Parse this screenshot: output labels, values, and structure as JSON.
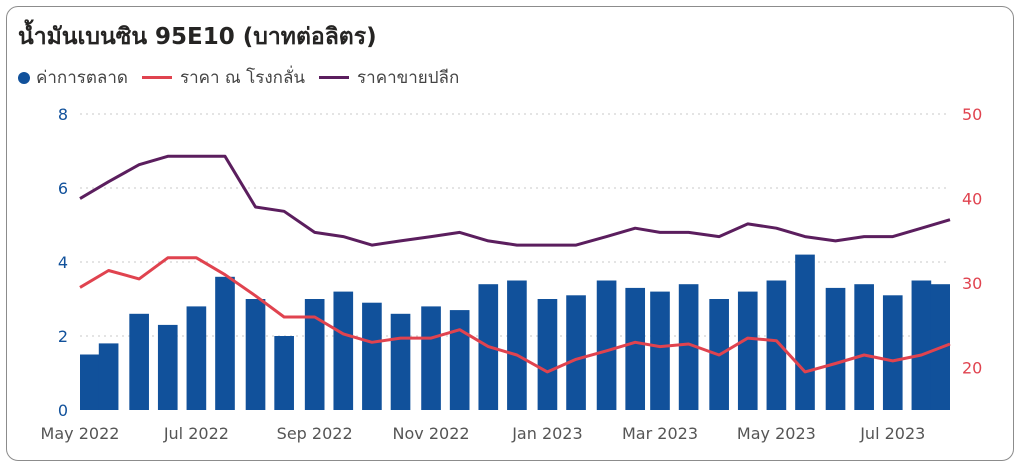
{
  "title": "น้ำมันเบนซิน 95E10 (บาทต่อลิตร)",
  "legend": [
    {
      "label": "ค่าการตลาด",
      "color": "#11519b",
      "kind": "dot"
    },
    {
      "label": "ราคา ณ โรงกลั่น",
      "color": "#e0434f",
      "kind": "line"
    },
    {
      "label": "ราคาขายปลีก",
      "color": "#5b1e5e",
      "kind": "line"
    }
  ],
  "chart_data": {
    "type": "bar+line",
    "x_ticks": [
      "May 2022",
      "Jul 2022",
      "Sep 2022",
      "Nov 2022",
      "Jan 2023",
      "Mar 2023",
      "May 2023",
      "Jul 2023"
    ],
    "x_range": [
      "2022-05-01",
      "2023-07-31"
    ],
    "y_left": {
      "ticks": [
        "0",
        "2",
        "4",
        "6",
        "8"
      ],
      "range": [
        0,
        8
      ],
      "color": "#11519b"
    },
    "y_right": {
      "ticks": [
        "20",
        "30",
        "40",
        "50"
      ],
      "range": [
        15,
        50
      ],
      "color": "#e0434f"
    },
    "grid": true,
    "series": [
      {
        "name": "ค่าการตลาด",
        "type": "bar",
        "axis": "left",
        "color": "#11519b",
        "x": [
          "2022-05-01",
          "2022-05-16",
          "2022-06-01",
          "2022-06-16",
          "2022-07-01",
          "2022-07-16",
          "2022-08-01",
          "2022-08-16",
          "2022-09-01",
          "2022-09-16",
          "2022-10-01",
          "2022-10-16",
          "2022-11-01",
          "2022-11-16",
          "2022-12-01",
          "2022-12-16",
          "2023-01-01",
          "2023-01-16",
          "2023-02-01",
          "2023-02-16",
          "2023-03-01",
          "2023-03-16",
          "2023-04-01",
          "2023-04-16",
          "2023-05-01",
          "2023-05-16",
          "2023-06-01",
          "2023-06-16",
          "2023-07-01",
          "2023-07-16",
          "2023-07-31"
        ],
        "values": [
          1.5,
          1.8,
          2.6,
          2.3,
          2.8,
          3.6,
          3.0,
          2.0,
          3.0,
          3.2,
          2.9,
          2.6,
          2.8,
          2.7,
          3.4,
          3.5,
          3.0,
          3.1,
          3.5,
          3.3,
          3.2,
          3.4,
          3.0,
          3.2,
          3.5,
          4.2,
          3.3,
          3.4,
          3.1,
          3.5,
          3.4
        ]
      },
      {
        "name": "ราคา ณ โรงกลั่น",
        "type": "line",
        "axis": "right",
        "color": "#e0434f",
        "x": [
          "2022-05-01",
          "2022-05-16",
          "2022-06-01",
          "2022-06-16",
          "2022-07-01",
          "2022-07-16",
          "2022-08-01",
          "2022-08-16",
          "2022-09-01",
          "2022-09-16",
          "2022-10-01",
          "2022-10-16",
          "2022-11-01",
          "2022-11-16",
          "2022-12-01",
          "2022-12-16",
          "2023-01-01",
          "2023-01-16",
          "2023-02-01",
          "2023-02-16",
          "2023-03-01",
          "2023-03-16",
          "2023-04-01",
          "2023-04-16",
          "2023-05-01",
          "2023-05-16",
          "2023-06-01",
          "2023-06-16",
          "2023-07-01",
          "2023-07-16",
          "2023-07-31"
        ],
        "values": [
          29.5,
          31.5,
          30.5,
          33,
          33,
          31,
          28.5,
          26,
          26,
          24,
          23,
          23.5,
          23.5,
          24.5,
          22.5,
          21.5,
          19.5,
          21,
          22,
          23,
          22.5,
          22.8,
          21.5,
          23.5,
          23.2,
          19.5,
          20.5,
          21.5,
          20.8,
          21.5,
          22.8
        ]
      },
      {
        "name": "ราคาขายปลีก",
        "type": "line",
        "axis": "right",
        "color": "#5b1e5e",
        "x": [
          "2022-05-01",
          "2022-05-16",
          "2022-06-01",
          "2022-06-16",
          "2022-07-01",
          "2022-07-16",
          "2022-08-01",
          "2022-08-16",
          "2022-09-01",
          "2022-09-16",
          "2022-10-01",
          "2022-10-16",
          "2022-11-01",
          "2022-11-16",
          "2022-12-01",
          "2022-12-16",
          "2023-01-01",
          "2023-01-16",
          "2023-02-01",
          "2023-02-16",
          "2023-03-01",
          "2023-03-16",
          "2023-04-01",
          "2023-04-16",
          "2023-05-01",
          "2023-05-16",
          "2023-06-01",
          "2023-06-16",
          "2023-07-01",
          "2023-07-16",
          "2023-07-31"
        ],
        "values": [
          40,
          42,
          44,
          45,
          45,
          45,
          39,
          38.5,
          36,
          35.5,
          34.5,
          35,
          35.5,
          36,
          35,
          34.5,
          34.5,
          34.5,
          35.5,
          36.5,
          36,
          36,
          35.5,
          37,
          36.5,
          35.5,
          35,
          35.5,
          35.5,
          36.5,
          37.5
        ]
      }
    ]
  }
}
